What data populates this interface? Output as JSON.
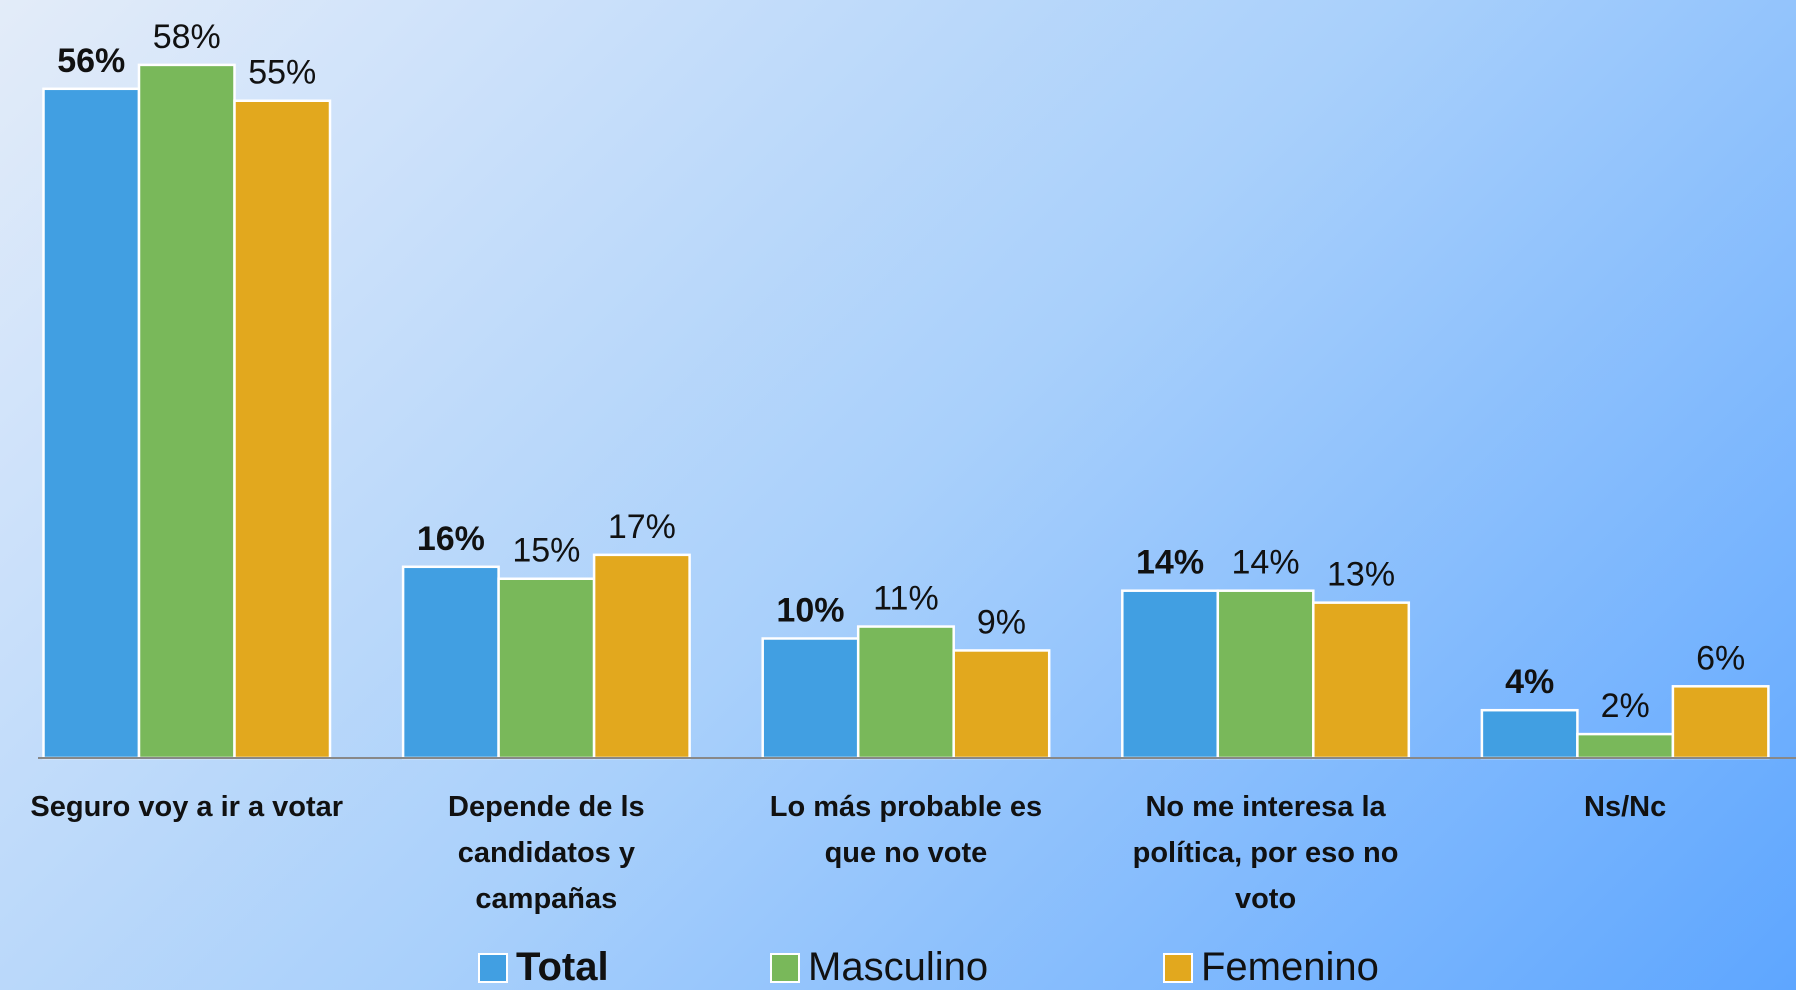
{
  "chart_data": {
    "type": "bar",
    "categories": [
      "Seguro voy a ir a votar",
      "Depende de ls candidatos y campañas",
      "Lo más probable es que no vote",
      "No me interesa la política, por eso no voto",
      "Ns/Nc"
    ],
    "series": [
      {
        "name": "Total",
        "color": "#419fe2",
        "values": [
          56,
          16,
          10,
          14,
          4
        ],
        "value_labels": [
          "56%",
          "16%",
          "10%",
          "14%",
          "4%"
        ]
      },
      {
        "name": "Masculino",
        "color": "#79b85a",
        "values": [
          58,
          15,
          11,
          14,
          2
        ],
        "value_labels": [
          "58%",
          "15%",
          "11%",
          "14%",
          "2%"
        ]
      },
      {
        "name": "Femenino",
        "color": "#e2a81e",
        "values": [
          55,
          17,
          9,
          13,
          6
        ],
        "value_labels": [
          "55%",
          "17%",
          "9%",
          "13%",
          "6%"
        ]
      }
    ],
    "legend": "bottom"
  }
}
